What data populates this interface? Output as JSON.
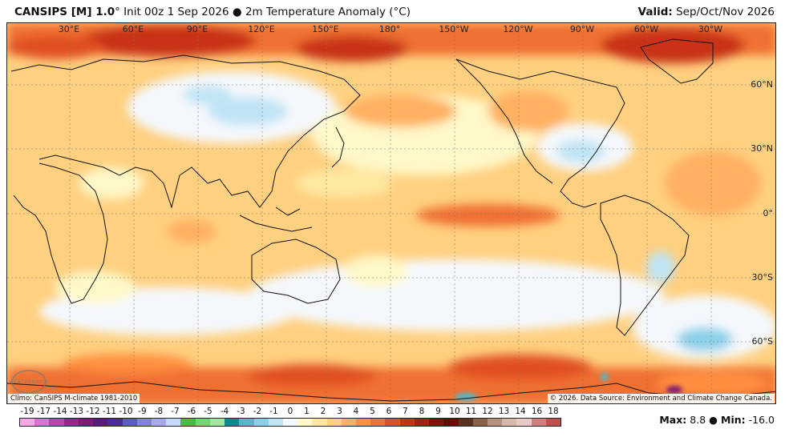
{
  "header": {
    "model": "CANSIPS [M] 1.0",
    "degree": "°",
    "init": "Init 00z 1 Sep 2026",
    "bullet": "●",
    "field": "2m Temperature Anomaly (°C)",
    "valid_label": "Valid:",
    "valid_value": "Sep/Oct/Nov 2026"
  },
  "map": {
    "lon_labels": [
      "30°E",
      "60°E",
      "90°E",
      "120°E",
      "150°E",
      "180°",
      "150°W",
      "120°W",
      "90°W",
      "60°W",
      "30°W"
    ],
    "lat_labels": [
      "60°N",
      "30°N",
      "0°",
      "30°S",
      "60°S"
    ],
    "climo": "Climo: CanSIPS M-climate 1981-2010",
    "copyright": "© 2026. Data Source: Environment and Climate Change Canada.",
    "logo_text": "WEATHERBELL"
  },
  "colorbar": {
    "labels": [
      "-19",
      "-17",
      "-14",
      "-13",
      "-12",
      "-11",
      "-10",
      "-9",
      "-8",
      "-7",
      "-6",
      "-5",
      "-4",
      "-3",
      "-2",
      "-1",
      "0",
      "1",
      "2",
      "3",
      "4",
      "5",
      "6",
      "7",
      "8",
      "9",
      "10",
      "11",
      "12",
      "13",
      "14",
      "16",
      "18"
    ],
    "colors": [
      "#f7a8e8",
      "#e070d0",
      "#c040b0",
      "#a02090",
      "#801a78",
      "#5a1a80",
      "#4a2aa0",
      "#5a5ad0",
      "#8080e8",
      "#a8a8f0",
      "#c8d8f8",
      "#40c040",
      "#70d870",
      "#a0e8a0",
      "#0a8c8c",
      "#50b8c8",
      "#8ad0e8",
      "#c0e4f4",
      "#f4f8fc",
      "#fff8c8",
      "#ffe8a0",
      "#ffd080",
      "#ffb060",
      "#ff9040",
      "#f07030",
      "#e05020",
      "#c83018",
      "#a82010",
      "#881008",
      "#6a0a04",
      "#5a3020",
      "#8a6048",
      "#b89080",
      "#d8b8a8",
      "#e8c8c8",
      "#d08080",
      "#c05050"
    ],
    "max_label": "Max:",
    "max_value": "8.8",
    "min_label": "Min:",
    "min_value": "-16.0",
    "bullet": "●"
  }
}
